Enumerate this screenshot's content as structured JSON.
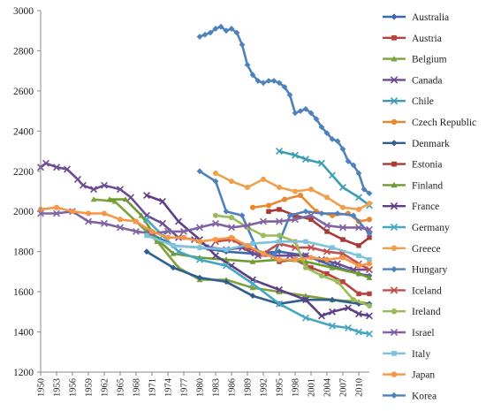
{
  "chart_data": {
    "type": "line",
    "title": "",
    "xlabel": "",
    "ylabel": "",
    "ylim": [
      1200,
      3000
    ],
    "yticks": [
      1200,
      1400,
      1600,
      1800,
      2000,
      2200,
      2400,
      2600,
      2800,
      3000
    ],
    "xlim": [
      1950,
      2012
    ],
    "xticks": [
      1950,
      1953,
      1956,
      1959,
      1962,
      1965,
      1968,
      1971,
      1974,
      1977,
      1980,
      1983,
      1986,
      1989,
      1992,
      1995,
      1998,
      2001,
      2004,
      2007,
      2010
    ],
    "grid": false,
    "legend_position": "right",
    "series": [
      {
        "name": "Australia",
        "color": "#3B6AA8",
        "marker": "diamond",
        "points": [
          [
            1970,
            1900
          ],
          [
            1975,
            1830
          ],
          [
            1980,
            1820
          ],
          [
            1985,
            1800
          ],
          [
            1990,
            1790
          ],
          [
            1995,
            1800
          ],
          [
            2000,
            1780
          ],
          [
            2005,
            1730
          ],
          [
            2010,
            1690
          ],
          [
            2012,
            1680
          ]
        ]
      },
      {
        "name": "Austria",
        "color": "#B8433E",
        "marker": "square",
        "points": [
          [
            1995,
            1750
          ],
          [
            1998,
            1760
          ],
          [
            2001,
            1720
          ],
          [
            2004,
            1690
          ],
          [
            2007,
            1650
          ],
          [
            2010,
            1590
          ],
          [
            2012,
            1590
          ]
        ]
      },
      {
        "name": "Belgium",
        "color": "#7FA23C",
        "marker": "triangle",
        "points": [
          [
            1960,
            2060
          ],
          [
            1964,
            2050
          ],
          [
            1968,
            1950
          ],
          [
            1972,
            1850
          ],
          [
            1976,
            1720
          ],
          [
            1980,
            1660
          ],
          [
            1985,
            1660
          ],
          [
            1990,
            1620
          ],
          [
            1995,
            1600
          ],
          [
            2000,
            1580
          ],
          [
            2005,
            1560
          ],
          [
            2010,
            1550
          ],
          [
            2012,
            1540
          ]
        ]
      },
      {
        "name": "Canada",
        "color": "#6D4B93",
        "marker": "x",
        "points": [
          [
            1950,
            2220
          ],
          [
            1951,
            2240
          ],
          [
            1953,
            2220
          ],
          [
            1955,
            2210
          ],
          [
            1957,
            2160
          ],
          [
            1958,
            2130
          ],
          [
            1960,
            2110
          ],
          [
            1962,
            2130
          ],
          [
            1965,
            2110
          ],
          [
            1967,
            2070
          ],
          [
            1970,
            1980
          ],
          [
            1973,
            1940
          ],
          [
            1976,
            1870
          ],
          [
            1979,
            1860
          ],
          [
            1982,
            1820
          ],
          [
            1985,
            1810
          ],
          [
            1988,
            1820
          ],
          [
            1991,
            1780
          ],
          [
            1994,
            1780
          ],
          [
            1997,
            1780
          ],
          [
            2000,
            1780
          ],
          [
            2003,
            1760
          ],
          [
            2006,
            1740
          ],
          [
            2009,
            1710
          ],
          [
            2012,
            1710
          ]
        ]
      },
      {
        "name": "Chile",
        "color": "#3B9DB5",
        "marker": "x",
        "points": [
          [
            1995,
            2300
          ],
          [
            1998,
            2280
          ],
          [
            2000,
            2260
          ],
          [
            2003,
            2240
          ],
          [
            2005,
            2180
          ],
          [
            2007,
            2120
          ],
          [
            2010,
            2070
          ],
          [
            2012,
            2030
          ]
        ]
      },
      {
        "name": "Czech Republic",
        "color": "#E8892F",
        "marker": "circle",
        "points": [
          [
            1990,
            2020
          ],
          [
            1993,
            2030
          ],
          [
            1996,
            2060
          ],
          [
            1999,
            2080
          ],
          [
            2002,
            2000
          ],
          [
            2005,
            1980
          ],
          [
            2008,
            1990
          ],
          [
            2010,
            1950
          ],
          [
            2012,
            1960
          ]
        ]
      },
      {
        "name": "Denmark",
        "color": "#2F5E8F",
        "marker": "diamond",
        "points": [
          [
            1970,
            1800
          ],
          [
            1975,
            1720
          ],
          [
            1980,
            1670
          ],
          [
            1985,
            1650
          ],
          [
            1990,
            1580
          ],
          [
            1995,
            1540
          ],
          [
            2000,
            1560
          ],
          [
            2005,
            1560
          ],
          [
            2010,
            1540
          ],
          [
            2012,
            1540
          ]
        ]
      },
      {
        "name": "Estonia",
        "color": "#A83A36",
        "marker": "square",
        "points": [
          [
            1993,
            2000
          ],
          [
            1995,
            2010
          ],
          [
            1998,
            1980
          ],
          [
            2001,
            1960
          ],
          [
            2004,
            1900
          ],
          [
            2007,
            1860
          ],
          [
            2010,
            1830
          ],
          [
            2012,
            1870
          ]
        ]
      },
      {
        "name": "Finland",
        "color": "#6E9A2F",
        "marker": "triangle",
        "points": [
          [
            1963,
            2060
          ],
          [
            1966,
            2060
          ],
          [
            1969,
            1980
          ],
          [
            1972,
            1860
          ],
          [
            1975,
            1790
          ],
          [
            1980,
            1770
          ],
          [
            1985,
            1760
          ],
          [
            1990,
            1750
          ],
          [
            1995,
            1760
          ],
          [
            2000,
            1750
          ],
          [
            2005,
            1720
          ],
          [
            2010,
            1690
          ],
          [
            2012,
            1670
          ]
        ]
      },
      {
        "name": "France",
        "color": "#5C3F86",
        "marker": "x",
        "points": [
          [
            1970,
            2080
          ],
          [
            1973,
            2050
          ],
          [
            1976,
            1950
          ],
          [
            1980,
            1860
          ],
          [
            1983,
            1780
          ],
          [
            1986,
            1730
          ],
          [
            1990,
            1660
          ],
          [
            1995,
            1610
          ],
          [
            2000,
            1560
          ],
          [
            2003,
            1480
          ],
          [
            2005,
            1500
          ],
          [
            2008,
            1520
          ],
          [
            2010,
            1490
          ],
          [
            2012,
            1480
          ]
        ]
      },
      {
        "name": "Germany",
        "color": "#46A7C2",
        "marker": "x",
        "points": [
          [
            1970,
            1960
          ],
          [
            1973,
            1880
          ],
          [
            1976,
            1800
          ],
          [
            1980,
            1760
          ],
          [
            1985,
            1730
          ],
          [
            1990,
            1640
          ],
          [
            1995,
            1540
          ],
          [
            2000,
            1470
          ],
          [
            2005,
            1430
          ],
          [
            2008,
            1420
          ],
          [
            2010,
            1400
          ],
          [
            2012,
            1390
          ]
        ]
      },
      {
        "name": "Greece",
        "color": "#F0A04C",
        "marker": "circle",
        "points": [
          [
            1983,
            2190
          ],
          [
            1986,
            2150
          ],
          [
            1989,
            2120
          ],
          [
            1992,
            2160
          ],
          [
            1995,
            2120
          ],
          [
            1998,
            2100
          ],
          [
            2001,
            2110
          ],
          [
            2004,
            2070
          ],
          [
            2007,
            2020
          ],
          [
            2010,
            2010
          ],
          [
            2012,
            2040
          ]
        ]
      },
      {
        "name": "Hungary",
        "color": "#4F80BD",
        "marker": "diamond",
        "points": [
          [
            1980,
            2200
          ],
          [
            1983,
            2150
          ],
          [
            1985,
            2000
          ],
          [
            1988,
            1980
          ],
          [
            1991,
            1800
          ],
          [
            1994,
            1780
          ],
          [
            1997,
            1980
          ],
          [
            2000,
            2000
          ],
          [
            2003,
            1990
          ],
          [
            2006,
            1990
          ],
          [
            2009,
            1980
          ],
          [
            2012,
            1890
          ]
        ]
      },
      {
        "name": "Iceland",
        "color": "#C0504D",
        "marker": "x",
        "points": [
          [
            1983,
            1850
          ],
          [
            1986,
            1860
          ],
          [
            1989,
            1820
          ],
          [
            1992,
            1790
          ],
          [
            1995,
            1840
          ],
          [
            1998,
            1820
          ],
          [
            2001,
            1820
          ],
          [
            2004,
            1800
          ],
          [
            2007,
            1790
          ],
          [
            2010,
            1740
          ],
          [
            2012,
            1710
          ]
        ]
      },
      {
        "name": "Ireland",
        "color": "#9BBB59",
        "marker": "circle",
        "points": [
          [
            1983,
            1980
          ],
          [
            1986,
            1970
          ],
          [
            1989,
            1920
          ],
          [
            1992,
            1880
          ],
          [
            1995,
            1880
          ],
          [
            1998,
            1850
          ],
          [
            2000,
            1720
          ],
          [
            2003,
            1680
          ],
          [
            2006,
            1650
          ],
          [
            2009,
            1560
          ],
          [
            2012,
            1530
          ]
        ]
      },
      {
        "name": "Israel",
        "color": "#8064A2",
        "marker": "x",
        "points": [
          [
            1950,
            1990
          ],
          [
            1953,
            1990
          ],
          [
            1956,
            2000
          ],
          [
            1959,
            1950
          ],
          [
            1962,
            1940
          ],
          [
            1965,
            1920
          ],
          [
            1968,
            1900
          ],
          [
            1971,
            1890
          ],
          [
            1974,
            1900
          ],
          [
            1977,
            1900
          ],
          [
            1980,
            1920
          ],
          [
            1983,
            1940
          ],
          [
            1986,
            1920
          ],
          [
            1989,
            1930
          ],
          [
            1992,
            1950
          ],
          [
            1995,
            1950
          ],
          [
            1998,
            1960
          ],
          [
            2001,
            1980
          ],
          [
            2004,
            1930
          ],
          [
            2007,
            1920
          ],
          [
            2010,
            1920
          ],
          [
            2012,
            1910
          ]
        ]
      },
      {
        "name": "Italy",
        "color": "#7CC3DC",
        "marker": "square",
        "points": [
          [
            1970,
            1880
          ],
          [
            1975,
            1830
          ],
          [
            1980,
            1820
          ],
          [
            1985,
            1810
          ],
          [
            1990,
            1840
          ],
          [
            1995,
            1850
          ],
          [
            2000,
            1850
          ],
          [
            2005,
            1820
          ],
          [
            2010,
            1780
          ],
          [
            2012,
            1760
          ]
        ]
      },
      {
        "name": "Japan",
        "color": "#F79646",
        "marker": "circle",
        "points": [
          [
            1950,
            2010
          ],
          [
            1953,
            2020
          ],
          [
            1956,
            2000
          ],
          [
            1959,
            1990
          ],
          [
            1962,
            1990
          ],
          [
            1965,
            1960
          ],
          [
            1968,
            1950
          ],
          [
            1971,
            1900
          ],
          [
            1974,
            1870
          ],
          [
            1977,
            1870
          ],
          [
            1980,
            1850
          ],
          [
            1983,
            1860
          ],
          [
            1986,
            1870
          ],
          [
            1989,
            1830
          ],
          [
            1992,
            1790
          ],
          [
            1995,
            1760
          ],
          [
            1998,
            1760
          ],
          [
            2001,
            1770
          ],
          [
            2004,
            1760
          ],
          [
            2007,
            1770
          ],
          [
            2010,
            1730
          ],
          [
            2012,
            1740
          ]
        ]
      },
      {
        "name": "Korea",
        "color": "#4F81BD",
        "marker": "diamond",
        "points": [
          [
            1980,
            2870
          ],
          [
            1981,
            2880
          ],
          [
            1982,
            2890
          ],
          [
            1983,
            2910
          ],
          [
            1984,
            2920
          ],
          [
            1985,
            2900
          ],
          [
            1986,
            2910
          ],
          [
            1987,
            2890
          ],
          [
            1988,
            2830
          ],
          [
            1989,
            2730
          ],
          [
            1990,
            2680
          ],
          [
            1991,
            2650
          ],
          [
            1992,
            2640
          ],
          [
            1993,
            2650
          ],
          [
            1994,
            2650
          ],
          [
            1995,
            2640
          ],
          [
            1996,
            2620
          ],
          [
            1997,
            2580
          ],
          [
            1998,
            2490
          ],
          [
            1999,
            2500
          ],
          [
            2000,
            2510
          ],
          [
            2001,
            2490
          ],
          [
            2002,
            2460
          ],
          [
            2003,
            2420
          ],
          [
            2004,
            2390
          ],
          [
            2005,
            2360
          ],
          [
            2006,
            2350
          ],
          [
            2007,
            2310
          ],
          [
            2008,
            2250
          ],
          [
            2009,
            2230
          ],
          [
            2010,
            2190
          ],
          [
            2011,
            2110
          ],
          [
            2012,
            2090
          ]
        ]
      }
    ]
  }
}
